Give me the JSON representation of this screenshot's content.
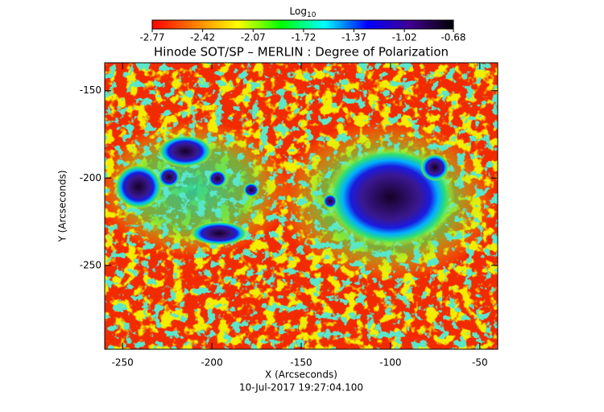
{
  "chart_data": {
    "type": "image",
    "title": "Hinode SOT/SP – MERLIN : Degree of Polarization",
    "x_label": "X (Arcseconds)",
    "y_label": "Y (Arcseconds)",
    "footer": "10-Jul-2017 19:27:04.100",
    "xlim": [
      -260,
      -40
    ],
    "xticks": [
      -250,
      -200,
      -150,
      -100,
      -50
    ],
    "ylim": [
      -298,
      -134
    ],
    "yticks": [
      -250,
      -200,
      -150
    ],
    "colorbar_label": "Log",
    "colorbar_label_subscript": "10",
    "clim": [
      -2.77,
      -0.68
    ],
    "cticks": [
      -2.77,
      -2.42,
      -2.07,
      -1.72,
      -1.37,
      -1.02,
      -0.68
    ],
    "colormap": [
      "#ff0000",
      "#ff8000",
      "#ffff00",
      "#00ff00",
      "#00ffff",
      "#0000ff",
      "#400090",
      "#000000"
    ]
  }
}
